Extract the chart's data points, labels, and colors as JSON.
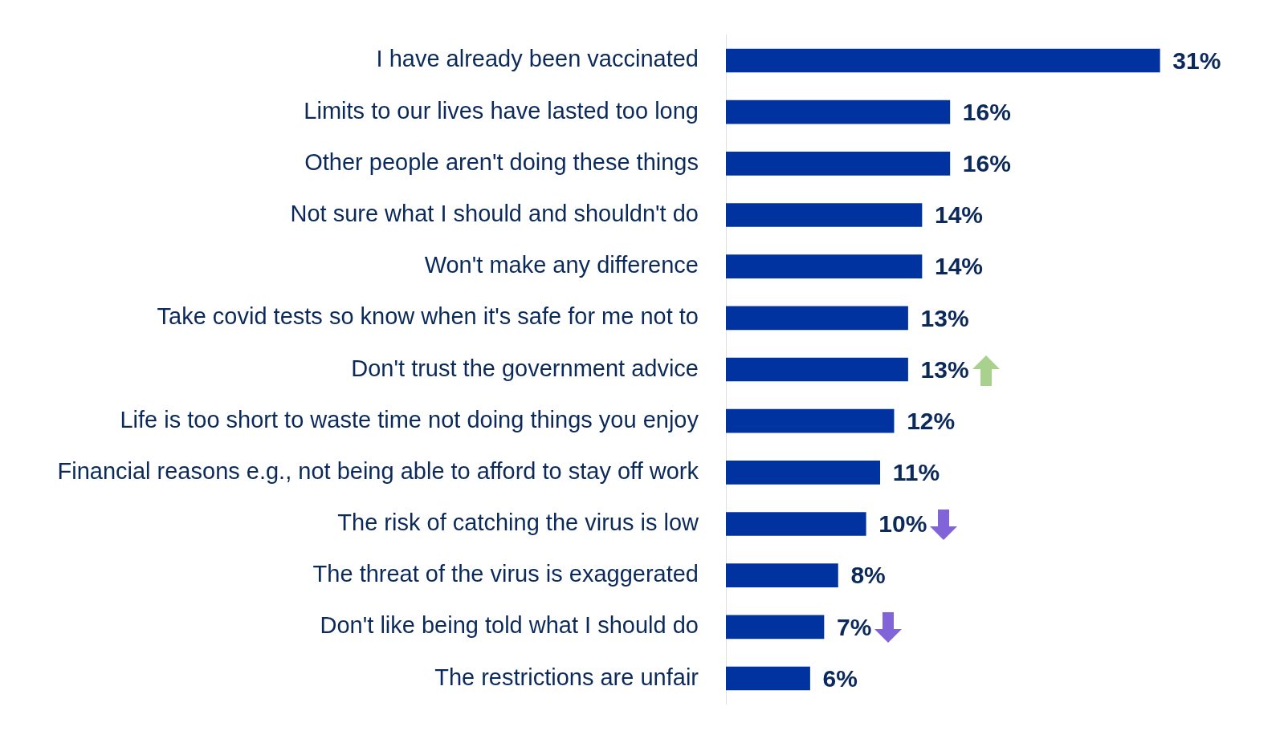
{
  "chart_data": {
    "type": "bar",
    "orientation": "horizontal",
    "categories": [
      "I have already been vaccinated",
      "Limits to our lives have lasted too long",
      "Other people aren't doing these things",
      "Not sure what I should and shouldn't do",
      "Won't make any difference",
      "Take covid tests so know when it's safe for me not to",
      "Don't trust the government advice",
      "Life is too short to waste time not doing things you enjoy",
      "Financial reasons e.g., not being able to afford to stay off work",
      "The risk of catching the virus is low",
      "The threat of the virus is exaggerated",
      "Don't like being told what I should do",
      "The restrictions are unfair"
    ],
    "values": [
      31,
      16,
      16,
      14,
      14,
      13,
      13,
      12,
      11,
      10,
      8,
      7,
      6
    ],
    "value_labels": [
      "31%",
      "16%",
      "16%",
      "14%",
      "14%",
      "13%",
      "13%",
      "12%",
      "11%",
      "10%",
      "8%",
      "7%",
      "6%"
    ],
    "color": "#0033a0",
    "tick_labels": "y",
    "legend": false
  }
}
